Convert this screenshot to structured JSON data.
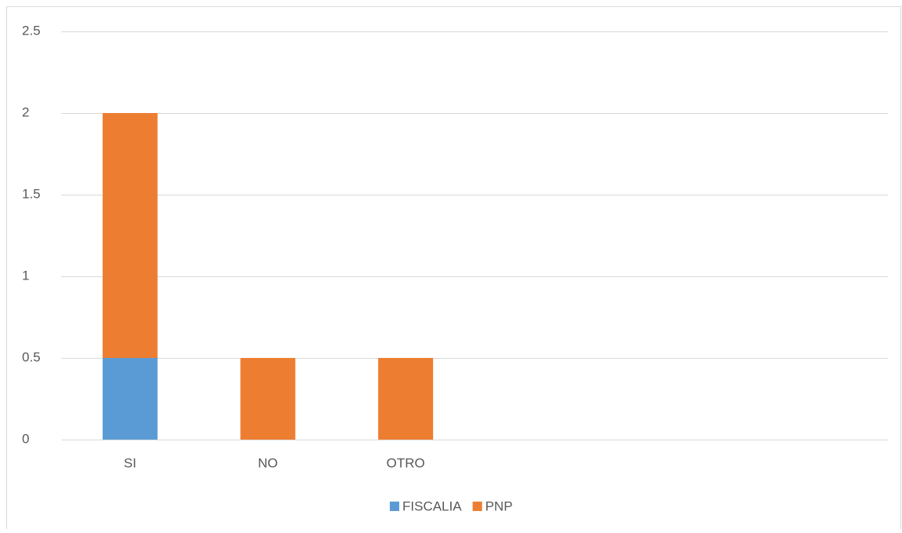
{
  "chart_data": {
    "type": "stacked_bar",
    "categories": [
      "SI",
      "NO",
      "OTRO",
      null,
      null,
      null
    ],
    "series": [
      {
        "name": "FISCALIA",
        "color": "#5b9bd5",
        "values": [
          0.5,
          0,
          0,
          null,
          null,
          null
        ]
      },
      {
        "name": "PNP",
        "color": "#ed7d31",
        "values": [
          1.5,
          0.5,
          0.5,
          null,
          null,
          null
        ]
      }
    ],
    "ylim": [
      0,
      2.5
    ],
    "yticks": [
      0,
      0.5,
      1,
      1.5,
      2,
      2.5
    ],
    "grid": true,
    "legend": "bottom"
  }
}
